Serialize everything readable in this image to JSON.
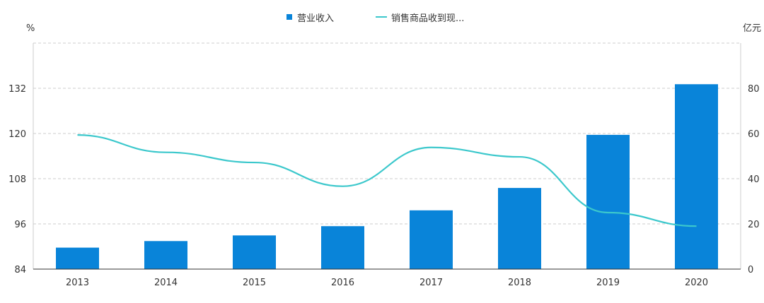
{
  "chart_data": {
    "type": "bar+line",
    "categories": [
      "2013",
      "2014",
      "2015",
      "2016",
      "2017",
      "2018",
      "2019",
      "2020"
    ],
    "series": [
      {
        "name": "营业收入",
        "type": "bar",
        "axis": "right",
        "color": "#0984d9",
        "values": [
          9.5,
          12.4,
          14.9,
          19.0,
          26.0,
          35.9,
          59.4,
          81.8
        ]
      },
      {
        "name": "销售商品收到现...",
        "type": "line",
        "axis": "left",
        "color": "#3cc8cc",
        "values": [
          119.6,
          115.0,
          112.3,
          106.0,
          116.3,
          113.8,
          99.0,
          95.4
        ]
      }
    ],
    "y_left": {
      "unit": "%",
      "ticks": [
        84,
        96,
        108,
        120,
        132
      ],
      "range": [
        84,
        144
      ]
    },
    "y_right": {
      "unit": "亿元",
      "ticks": [
        0,
        20,
        40,
        60,
        80
      ],
      "range": [
        0,
        100
      ]
    },
    "grid": true,
    "legend": "top-center"
  }
}
